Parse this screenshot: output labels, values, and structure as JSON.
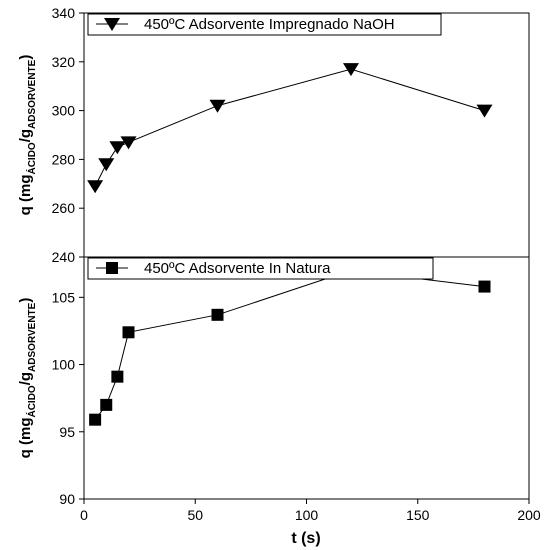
{
  "chart_data": [
    {
      "type": "line",
      "series": [
        {
          "name": "450ºC Adsorvente Impregnado NaOH",
          "marker": "triangle-down",
          "x": [
            5,
            10,
            15,
            20,
            60,
            120,
            180
          ],
          "values": [
            269,
            278,
            285,
            287,
            302,
            317,
            300
          ]
        }
      ],
      "ylabel": {
        "main": "q (mg",
        "sub1": "ÁCIDO",
        "mid": "/g",
        "sub2": "ADSORVENTE",
        "end": ")"
      },
      "xlim": [
        0,
        200
      ],
      "ylim": [
        240,
        340
      ],
      "yticks": [
        240,
        260,
        280,
        300,
        320,
        340
      ],
      "legend_position": "top-left"
    },
    {
      "type": "line",
      "series": [
        {
          "name": "450ºC Adsorvente In Natura",
          "marker": "square",
          "x": [
            5,
            10,
            15,
            20,
            60,
            120,
            180
          ],
          "values": [
            95.9,
            97.0,
            99.1,
            102.4,
            103.7,
            107.0,
            105.8
          ]
        }
      ],
      "ylabel": {
        "main": "q (mg",
        "sub1": "ÁCIDO",
        "mid": "/g",
        "sub2": "ADSORVENTE",
        "end": ")"
      },
      "xlabel": "t (s)",
      "xlim": [
        0,
        200
      ],
      "xticks": [
        0,
        50,
        100,
        150,
        200
      ],
      "ylim": [
        90,
        108
      ],
      "yticks": [
        90,
        95,
        100,
        105
      ],
      "legend_position": "top-left"
    }
  ],
  "colors": {
    "line": "#000000",
    "marker": "#000000",
    "background": "#ffffff"
  }
}
